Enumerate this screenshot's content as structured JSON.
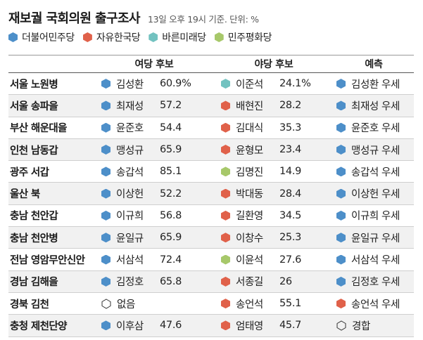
{
  "colors": {
    "더불어민주당": "#4d8fc9",
    "자유한국당": "#e0614a",
    "바른미래당": "#72c2c0",
    "민주평화당": "#a7c86a",
    "none": "#333333"
  },
  "chart_data": {
    "type": "table",
    "title": "재보궐 국회의원 출구조사",
    "subtitle": "13일 오후 19시 기준. 단위: %",
    "legend": [
      {
        "party": "더불어민주당",
        "color": "#4d8fc9"
      },
      {
        "party": "자유한국당",
        "color": "#e0614a"
      },
      {
        "party": "바른미래당",
        "color": "#72c2c0"
      },
      {
        "party": "민주평화당",
        "color": "#a7c86a"
      }
    ],
    "columns": [
      "",
      "여당 후보",
      "야당 후보",
      "예측"
    ],
    "rows": [
      {
        "region": "서울 노원병",
        "ruling": {
          "party": "더불어민주당",
          "name": "김성환",
          "pct": "60.9%"
        },
        "opposition": {
          "party": "바른미래당",
          "name": "이준석",
          "pct": "24.1%"
        },
        "prediction": {
          "party": "더불어민주당",
          "text": "김성환 우세"
        }
      },
      {
        "region": "서울 송파을",
        "ruling": {
          "party": "더불어민주당",
          "name": "최재성",
          "pct": "57.2"
        },
        "opposition": {
          "party": "자유한국당",
          "name": "배현진",
          "pct": "28.2"
        },
        "prediction": {
          "party": "더불어민주당",
          "text": "최재성 우세"
        }
      },
      {
        "region": "부산 해운대을",
        "ruling": {
          "party": "더불어민주당",
          "name": "윤준호",
          "pct": "54.4"
        },
        "opposition": {
          "party": "자유한국당",
          "name": "김대식",
          "pct": "35.3"
        },
        "prediction": {
          "party": "더불어민주당",
          "text": "윤준호 우세"
        }
      },
      {
        "region": "인천 남동갑",
        "ruling": {
          "party": "더불어민주당",
          "name": "맹성규",
          "pct": "65.9"
        },
        "opposition": {
          "party": "자유한국당",
          "name": "윤형모",
          "pct": "23.4"
        },
        "prediction": {
          "party": "더불어민주당",
          "text": "맹성규 우세"
        }
      },
      {
        "region": "광주 서갑",
        "ruling": {
          "party": "더불어민주당",
          "name": "송갑석",
          "pct": "85.1"
        },
        "opposition": {
          "party": "민주평화당",
          "name": "김명진",
          "pct": "14.9"
        },
        "prediction": {
          "party": "더불어민주당",
          "text": "송갑석 우세"
        }
      },
      {
        "region": "울산 북",
        "ruling": {
          "party": "더불어민주당",
          "name": "이상헌",
          "pct": "52.2"
        },
        "opposition": {
          "party": "자유한국당",
          "name": "박대동",
          "pct": "28.4"
        },
        "prediction": {
          "party": "더불어민주당",
          "text": "이상헌 우세"
        }
      },
      {
        "region": "충남 천안갑",
        "ruling": {
          "party": "더불어민주당",
          "name": "이규희",
          "pct": "56.8"
        },
        "opposition": {
          "party": "자유한국당",
          "name": "길환영",
          "pct": "34.5"
        },
        "prediction": {
          "party": "더불어민주당",
          "text": "이규희 우세"
        }
      },
      {
        "region": "충남 천안병",
        "ruling": {
          "party": "더불어민주당",
          "name": "윤일규",
          "pct": "65.9"
        },
        "opposition": {
          "party": "자유한국당",
          "name": "이창수",
          "pct": "25.3"
        },
        "prediction": {
          "party": "더불어민주당",
          "text": "윤일규 우세"
        }
      },
      {
        "region": "전남 영암무안신안",
        "ruling": {
          "party": "더불어민주당",
          "name": "서삼석",
          "pct": "72.4"
        },
        "opposition": {
          "party": "민주평화당",
          "name": "이윤석",
          "pct": "27.6"
        },
        "prediction": {
          "party": "더불어민주당",
          "text": "서삼석 우세"
        }
      },
      {
        "region": "경남 김해을",
        "ruling": {
          "party": "더불어민주당",
          "name": "김정호",
          "pct": "65.8"
        },
        "opposition": {
          "party": "자유한국당",
          "name": "서종길",
          "pct": "26"
        },
        "prediction": {
          "party": "더불어민주당",
          "text": "김정호 우세"
        }
      },
      {
        "region": "경북 김천",
        "ruling": {
          "party": "none",
          "name": "없음",
          "pct": ""
        },
        "opposition": {
          "party": "자유한국당",
          "name": "송언석",
          "pct": "55.1"
        },
        "prediction": {
          "party": "자유한국당",
          "text": "송언석 우세"
        }
      },
      {
        "region": "충청 제천단양",
        "ruling": {
          "party": "더불어민주당",
          "name": "이후삼",
          "pct": "47.6"
        },
        "opposition": {
          "party": "자유한국당",
          "name": "엄태영",
          "pct": "45.7"
        },
        "prediction": {
          "party": "none",
          "text": "경합"
        }
      }
    ]
  }
}
